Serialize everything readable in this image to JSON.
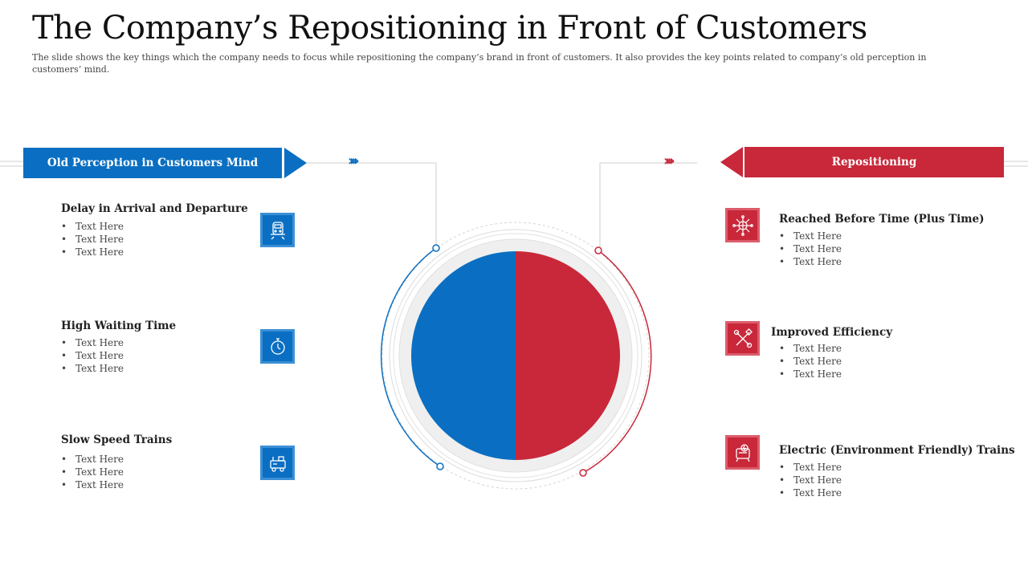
{
  "title": "The Company’s Repositioning in Front of Customers",
  "subtitle": "The slide shows the key things which the company needs to focus while repositioning  the company’s brand  in front of customers. It also provides the key points related  to company’s old perception  in customers’ mind.",
  "colors": {
    "blue": "#0a6fc2",
    "red": "#c8283a",
    "grey_ring": "#eeeeee"
  },
  "left_section": {
    "banner": "Old Perception in Customers Mind",
    "chevrons": "››››",
    "items": [
      {
        "title": "Delay in Arrival and Departure",
        "icon": "train-icon",
        "bullets": [
          "Text Here",
          "Text Here",
          "Text Here"
        ]
      },
      {
        "title": "High Waiting Time",
        "icon": "stopwatch-icon",
        "bullets": [
          "Text Here",
          "Text Here",
          "Text Here"
        ]
      },
      {
        "title": "Slow Speed Trains",
        "icon": "locomotive-icon",
        "bullets": [
          "Text Here",
          "Text Here",
          "Text Here"
        ]
      }
    ]
  },
  "right_section": {
    "banner": "Repositioning",
    "chevrons": "››››",
    "items": [
      {
        "title": "Reached Before Time (Plus Time)",
        "icon": "network-globe-icon",
        "bullets": [
          "Text Here",
          "Text Here",
          "Text Here"
        ]
      },
      {
        "title": "Improved Efficiency",
        "icon": "tools-icon",
        "bullets": [
          "Text Here",
          "Text Here",
          "Text Here"
        ]
      },
      {
        "title": "Electric (Environment Friendly) Trains",
        "icon": "electric-train-icon",
        "bullets": [
          "Text Here",
          "Text Here",
          "Text Here"
        ]
      }
    ]
  }
}
